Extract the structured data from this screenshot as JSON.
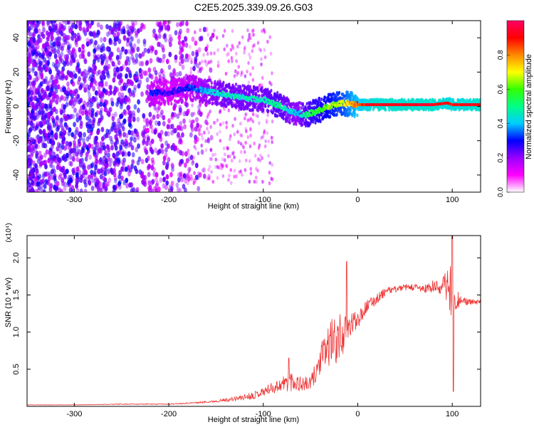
{
  "title": "C2E5.2025.339.09.26.G03",
  "chart_data": [
    {
      "type": "heatmap",
      "name": "spectrogram",
      "xlabel": "Height of straight line (km)",
      "ylabel": "Frequency (Hz)",
      "xlim": [
        -350,
        130
      ],
      "ylim": [
        -50,
        50
      ],
      "xticks": [
        -300,
        -200,
        -100,
        0,
        100
      ],
      "xtick_labels": [
        "-300",
        "-200",
        "-100",
        "0",
        "100"
      ],
      "yticks": [
        -40,
        -20,
        0,
        20,
        40
      ],
      "ytick_labels": [
        "-40",
        "-20",
        "0",
        "20",
        "40"
      ],
      "colorbar": {
        "label": "Normalized spectral amplitude",
        "range": [
          0,
          1
        ],
        "ticks": [
          0.0,
          0.2,
          0.4,
          0.6,
          0.8
        ],
        "tick_labels": [
          "0.0",
          "0.2",
          "0.4",
          "0.6",
          "0.8"
        ],
        "stops": [
          "#ffffff",
          "#ff00ff",
          "#9900ff",
          "#0000ff",
          "#00ccff",
          "#00ff88",
          "#33ff00",
          "#ffff00",
          "#ff8800",
          "#ff0000",
          "#ff0066"
        ]
      },
      "ridge": {
        "x": [
          -220,
          -200,
          -180,
          -160,
          -140,
          -120,
          -100,
          -85,
          -75,
          -65,
          -55,
          -45,
          -35,
          -25,
          -15,
          -5,
          10,
          30,
          60,
          80,
          95,
          100,
          130
        ],
        "y": [
          8,
          8,
          11,
          9,
          7,
          5,
          4,
          1,
          -2,
          -4,
          -5,
          -3,
          -1,
          1,
          2,
          1,
          1,
          1,
          1,
          1,
          2,
          1,
          1
        ],
        "amplitude": [
          0.35,
          0.3,
          0.35,
          0.45,
          0.5,
          0.5,
          0.5,
          0.55,
          0.5,
          0.45,
          0.55,
          0.6,
          0.65,
          0.7,
          0.75,
          0.85,
          0.95,
          0.98,
          0.98,
          0.98,
          0.95,
          0.95,
          0.98
        ]
      }
    },
    {
      "type": "line",
      "name": "snr",
      "xlabel": "Height of straight line (km)",
      "ylabel": "SNR (10 * v/v)",
      "y_multiplier": "(x10⁴)",
      "xlim": [
        -350,
        130
      ],
      "ylim": [
        0,
        2.3
      ],
      "xticks": [
        -300,
        -200,
        -100,
        0,
        100
      ],
      "xtick_labels": [
        "-300",
        "-200",
        "-100",
        "0",
        "100"
      ],
      "yticks": [
        0.5,
        1.0,
        1.5,
        2.0
      ],
      "ytick_labels": [
        "0.5",
        "1.0",
        "1.5",
        "2.0"
      ],
      "color": "#ee3333",
      "series": [
        {
          "name": "SNR",
          "x": [
            -350,
            -300,
            -250,
            -200,
            -170,
            -150,
            -130,
            -110,
            -100,
            -90,
            -80,
            -70,
            -60,
            -50,
            -45,
            -40,
            -30,
            -20,
            -10,
            0,
            10,
            20,
            30,
            40,
            50,
            60,
            70,
            80,
            90,
            95,
            100,
            105,
            110,
            120,
            130
          ],
          "y": [
            0.02,
            0.02,
            0.03,
            0.03,
            0.05,
            0.07,
            0.1,
            0.15,
            0.2,
            0.25,
            0.3,
            0.35,
            0.3,
            0.3,
            0.45,
            0.6,
            0.85,
            0.9,
            1.05,
            1.2,
            1.35,
            1.45,
            1.55,
            1.58,
            1.6,
            1.6,
            1.58,
            1.6,
            1.62,
            1.65,
            1.55,
            1.45,
            1.42,
            1.4,
            1.4
          ],
          "noise": [
            0.003,
            0.003,
            0.005,
            0.006,
            0.01,
            0.015,
            0.03,
            0.05,
            0.06,
            0.08,
            0.1,
            0.15,
            0.1,
            0.1,
            0.15,
            0.2,
            0.3,
            0.35,
            0.15,
            0.15,
            0.08,
            0.08,
            0.05,
            0.04,
            0.04,
            0.05,
            0.06,
            0.1,
            0.12,
            0.25,
            0.4,
            0.15,
            0.05,
            0.04,
            0.04
          ]
        }
      ],
      "peaks": [
        {
          "x": -12,
          "y": 1.95
        },
        {
          "x": -73,
          "y": 0.65
        },
        {
          "x": 100,
          "y": 2.3
        },
        {
          "x": 101,
          "y": 0.2
        }
      ]
    }
  ]
}
